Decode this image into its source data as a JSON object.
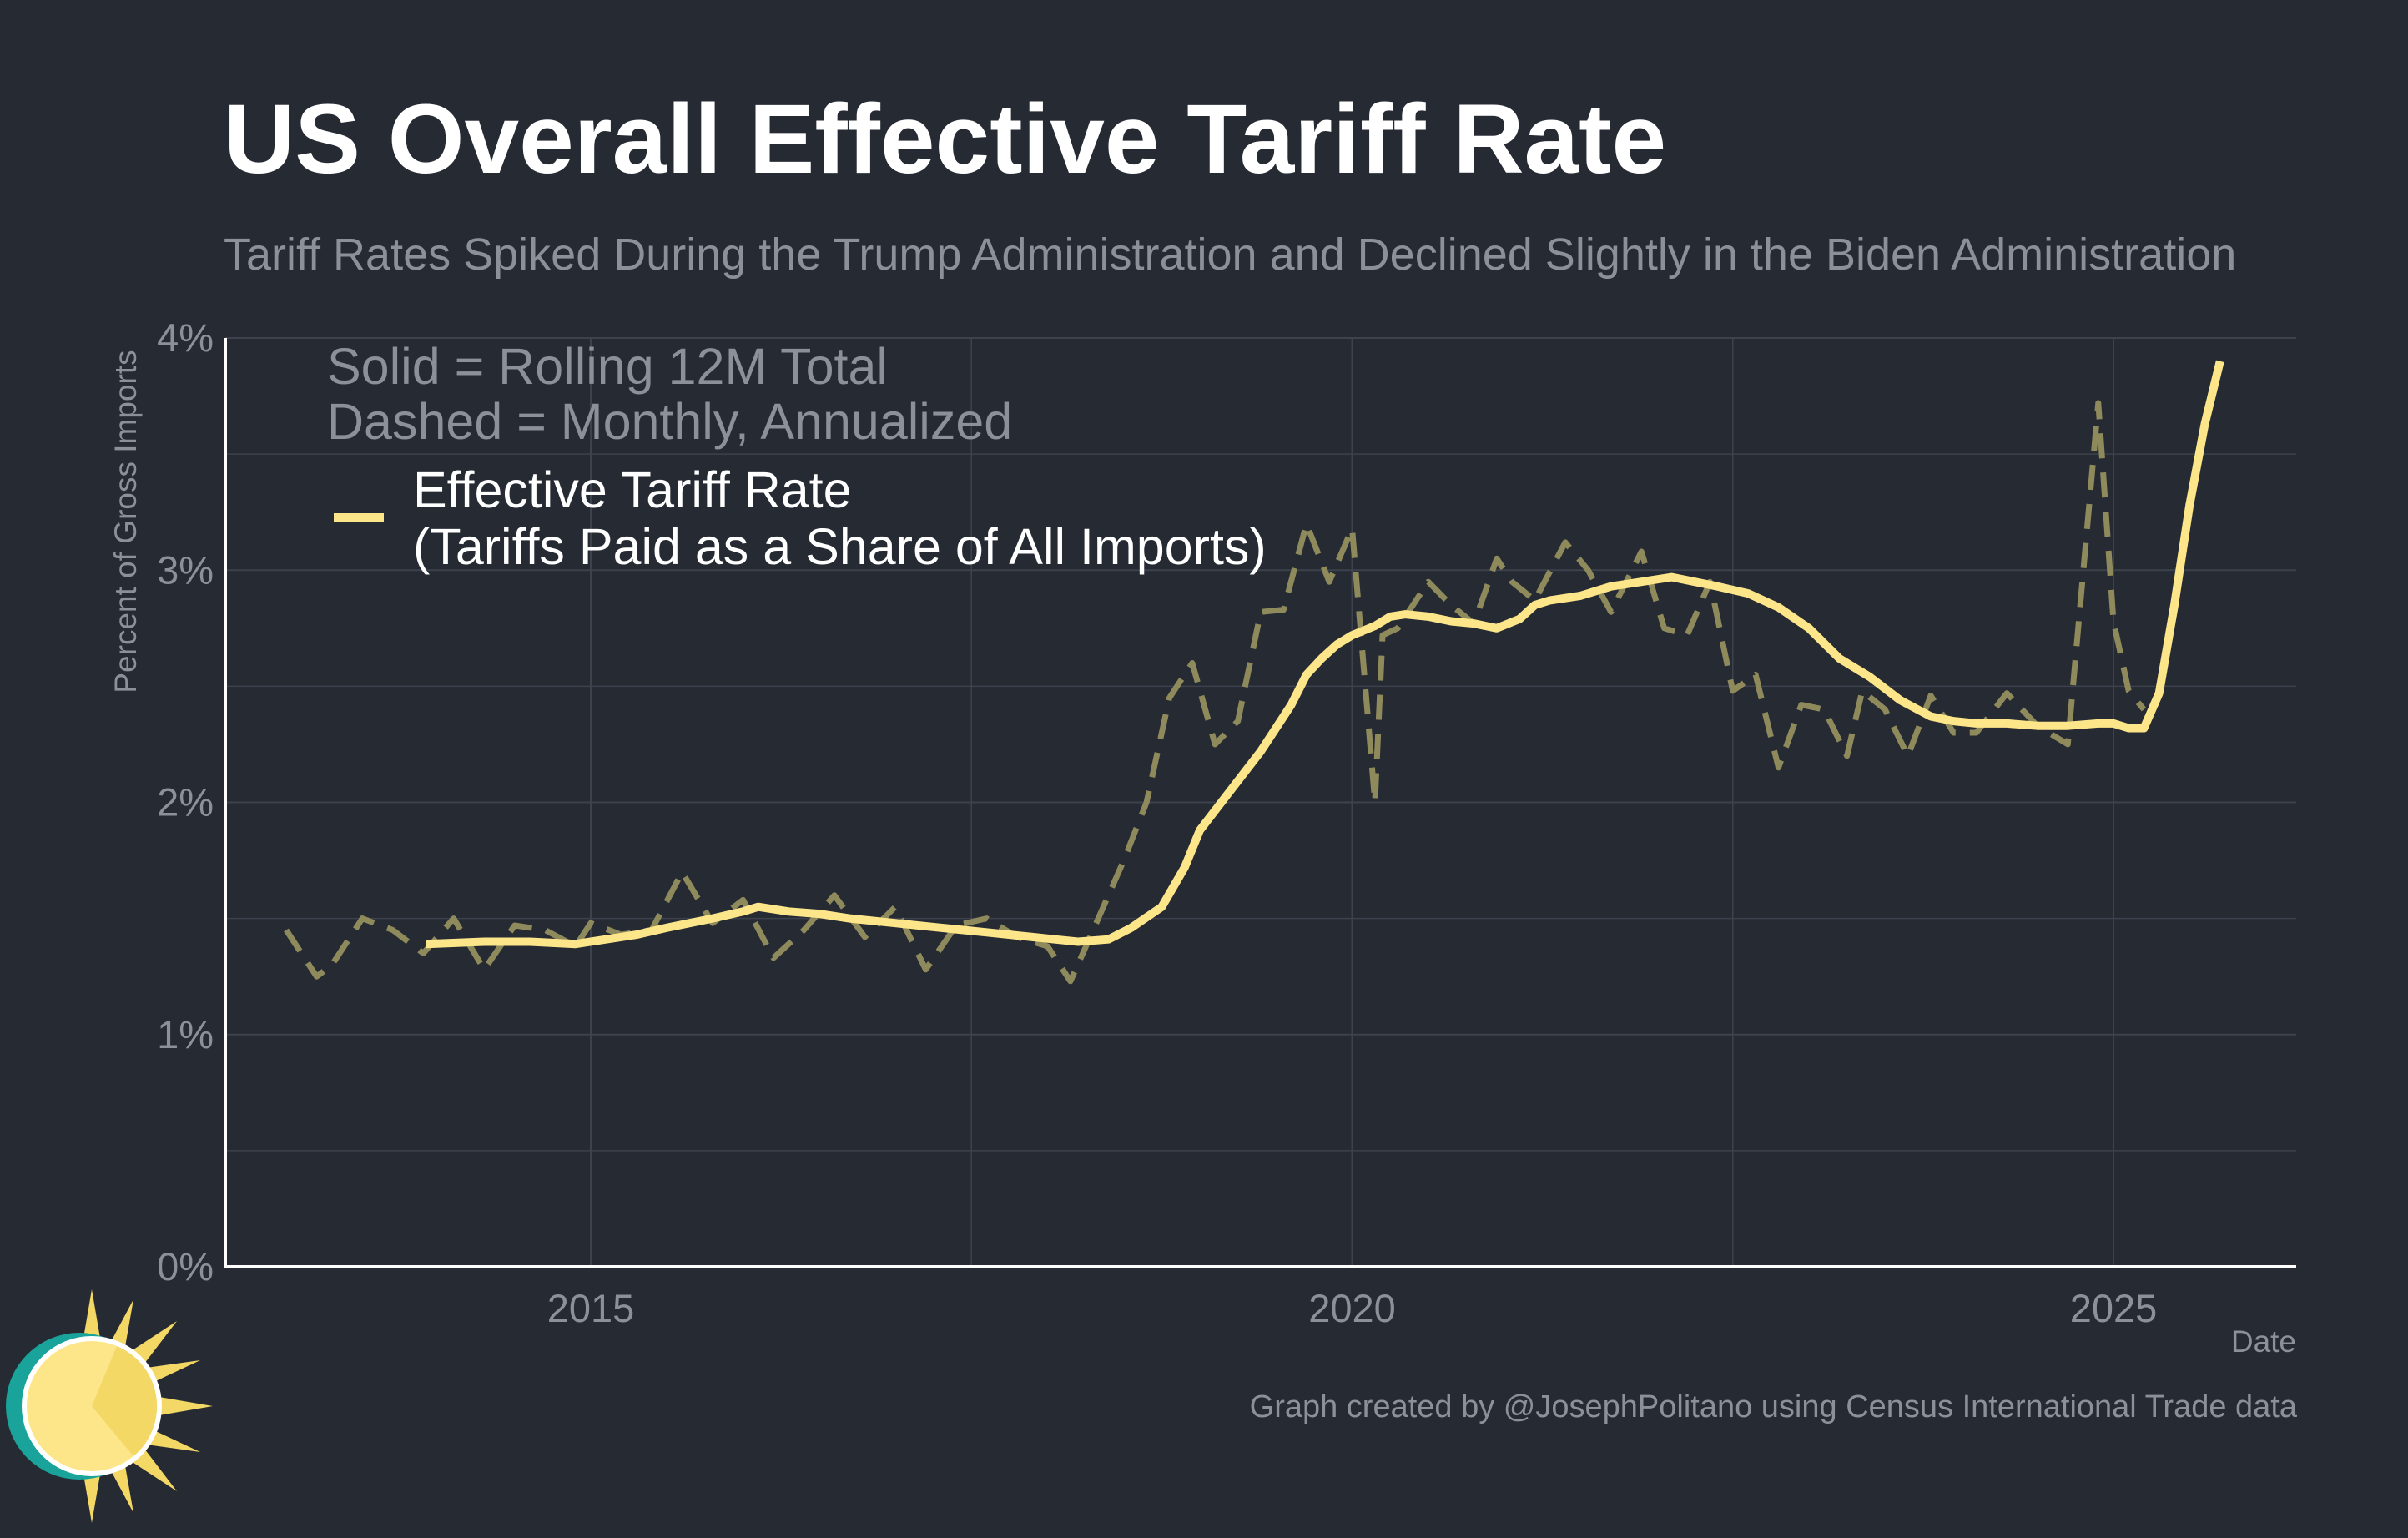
{
  "title": "US Overall Effective Tariff Rate",
  "subtitle": "Tariff Rates Spiked During the Trump Administration and Declined Slightly in the Biden Administration",
  "caption": "Graph created by @JosephPolitano using Census International Trade data",
  "notes": [
    "Solid = Rolling 12M Total",
    "Dashed = Monthly, Annualized"
  ],
  "colors": {
    "background": "#252a33",
    "line": "#fde68a",
    "dashed": "#8f8a5c",
    "grid": "#3d424c",
    "text": "#8b9099",
    "axis": "#ffffff"
  },
  "logo_icon": "sun-clock-logo-icon",
  "chart_data": {
    "type": "line",
    "xlabel": "Date",
    "ylabel": "Percent of Gross Imports",
    "xlim": [
      2012.6,
      2026.2
    ],
    "ylim": [
      0,
      4
    ],
    "x_ticks": [
      2015,
      2020,
      2025
    ],
    "x_tick_labels": [
      "2015",
      "2020",
      "2025"
    ],
    "y_ticks": [
      0,
      1,
      2,
      3,
      4
    ],
    "y_tick_labels": [
      "0%",
      "1%",
      "2%",
      "3%",
      "4%"
    ],
    "grid": true,
    "legend": {
      "position": "top-left",
      "entries": [
        "Effective Tariff Rate",
        "(Tariffs Paid as a Share of All Imports)"
      ]
    },
    "series": [
      {
        "name": "Effective Tariff Rate",
        "style": "solid",
        "x": [
          2013.92,
          2014.3,
          2014.6,
          2014.9,
          2015.1,
          2015.3,
          2015.5,
          2015.8,
          2016.0,
          2016.1,
          2016.3,
          2016.5,
          2016.7,
          2017.0,
          2017.3,
          2017.6,
          2017.9,
          2018.2,
          2018.4,
          2018.55,
          2018.75,
          2018.9,
          2019.0,
          2019.2,
          2019.4,
          2019.6,
          2019.7,
          2019.8,
          2019.9,
          2020.0,
          2020.15,
          2020.25,
          2020.35,
          2020.5,
          2020.65,
          2020.8,
          2020.95,
          2021.1,
          2021.2,
          2021.3,
          2021.5,
          2021.7,
          2021.9,
          2022.1,
          2022.25,
          2022.4,
          2022.6,
          2022.8,
          2023.0,
          2023.2,
          2023.4,
          2023.6,
          2023.8,
          2023.95,
          2024.1,
          2024.3,
          2024.5,
          2024.7,
          2024.9,
          2025.0,
          2025.1,
          2025.2,
          2025.3,
          2025.4,
          2025.5,
          2025.6,
          2025.7
        ],
        "y": [
          1.39,
          1.4,
          1.4,
          1.39,
          1.41,
          1.43,
          1.46,
          1.5,
          1.53,
          1.55,
          1.53,
          1.52,
          1.5,
          1.48,
          1.46,
          1.44,
          1.42,
          1.4,
          1.41,
          1.46,
          1.55,
          1.72,
          1.88,
          2.05,
          2.22,
          2.42,
          2.55,
          2.62,
          2.68,
          2.72,
          2.76,
          2.8,
          2.81,
          2.8,
          2.78,
          2.77,
          2.75,
          2.79,
          2.85,
          2.87,
          2.89,
          2.93,
          2.95,
          2.97,
          2.95,
          2.93,
          2.9,
          2.84,
          2.75,
          2.62,
          2.54,
          2.44,
          2.37,
          2.35,
          2.34,
          2.34,
          2.33,
          2.33,
          2.34,
          2.34,
          2.32,
          2.32,
          2.47,
          2.85,
          3.28,
          3.63,
          3.9
        ]
      },
      {
        "name": "Effective Tariff Rate",
        "style": "dashed",
        "x": [
          2013.0,
          2013.2,
          2013.3,
          2013.5,
          2013.7,
          2013.9,
          2014.1,
          2014.3,
          2014.5,
          2014.7,
          2014.9,
          2015.0,
          2015.2,
          2015.4,
          2015.6,
          2015.8,
          2016.0,
          2016.2,
          2016.4,
          2016.6,
          2016.8,
          2017.0,
          2017.2,
          2017.4,
          2017.6,
          2017.8,
          2018.0,
          2018.15,
          2018.3,
          2018.5,
          2018.65,
          2018.8,
          2018.95,
          2019.1,
          2019.25,
          2019.4,
          2019.55,
          2019.7,
          2019.85,
          2020.0,
          2020.15,
          2020.2,
          2020.3,
          2020.5,
          2020.65,
          2020.8,
          2020.95,
          2021.05,
          2021.2,
          2021.4,
          2021.55,
          2021.7,
          2021.9,
          2022.05,
          2022.2,
          2022.35,
          2022.5,
          2022.65,
          2022.8,
          2022.95,
          2023.1,
          2023.25,
          2023.35,
          2023.5,
          2023.65,
          2023.8,
          2023.95,
          2024.1,
          2024.3,
          2024.5,
          2024.7,
          2024.9,
          2025.0,
          2025.1,
          2025.2
        ],
        "y": [
          1.45,
          1.25,
          1.3,
          1.5,
          1.45,
          1.35,
          1.5,
          1.28,
          1.47,
          1.45,
          1.38,
          1.48,
          1.43,
          1.45,
          1.7,
          1.48,
          1.58,
          1.33,
          1.45,
          1.6,
          1.42,
          1.55,
          1.28,
          1.47,
          1.5,
          1.42,
          1.38,
          1.23,
          1.45,
          1.75,
          2.0,
          2.45,
          2.6,
          2.25,
          2.35,
          2.82,
          2.83,
          3.2,
          2.95,
          3.18,
          2.0,
          2.72,
          2.75,
          2.95,
          2.85,
          2.77,
          3.05,
          2.95,
          2.87,
          3.12,
          3.0,
          2.82,
          3.08,
          2.75,
          2.72,
          2.95,
          2.48,
          2.55,
          2.15,
          2.42,
          2.4,
          2.2,
          2.48,
          2.4,
          2.2,
          2.46,
          2.3,
          2.3,
          2.47,
          2.33,
          2.25,
          3.72,
          2.78,
          2.48,
          2.4
        ]
      }
    ]
  }
}
